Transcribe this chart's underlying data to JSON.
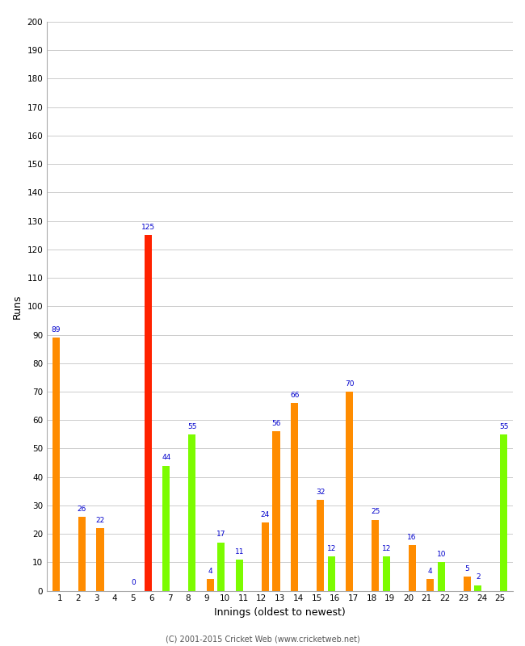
{
  "xlabel": "Innings (oldest to newest)",
  "ylabel": "Runs",
  "ylim": [
    0,
    200
  ],
  "yticks": [
    0,
    10,
    20,
    30,
    40,
    50,
    60,
    70,
    80,
    90,
    100,
    110,
    120,
    130,
    140,
    150,
    160,
    170,
    180,
    190,
    200
  ],
  "innings": [
    1,
    2,
    3,
    4,
    5,
    6,
    7,
    8,
    9,
    10,
    11,
    12,
    13,
    14,
    15,
    16,
    17,
    18,
    19,
    20,
    21,
    22,
    23,
    24,
    25
  ],
  "left_values": [
    89,
    0,
    0,
    0,
    0,
    125,
    44,
    0,
    0,
    17,
    11,
    0,
    56,
    66,
    0,
    12,
    70,
    0,
    12,
    0,
    0,
    10,
    0,
    2,
    0
  ],
  "right_values": [
    0,
    26,
    22,
    0,
    0,
    0,
    0,
    55,
    4,
    0,
    0,
    24,
    0,
    0,
    32,
    0,
    0,
    25,
    0,
    16,
    4,
    0,
    5,
    0,
    55
  ],
  "left_colors": [
    "#ff8c00",
    "#7cfc00",
    "#7cfc00",
    "#7cfc00",
    "#7cfc00",
    "#ff2200",
    "#7cfc00",
    "#ff8c00",
    "#7cfc00",
    "#7cfc00",
    "#7cfc00",
    "#7cfc00",
    "#ff8c00",
    "#ff8c00",
    "#7cfc00",
    "#7cfc00",
    "#ff8c00",
    "#7cfc00",
    "#7cfc00",
    "#7cfc00",
    "#7cfc00",
    "#7cfc00",
    "#7cfc00",
    "#7cfc00",
    "#ff8c00"
  ],
  "right_colors": [
    "#7cfc00",
    "#ff8c00",
    "#ff8c00",
    "#ff8c00",
    "#7cfc00",
    "#7cfc00",
    "#ff8c00",
    "#7cfc00",
    "#ff8c00",
    "#ff8c00",
    "#ff8c00",
    "#ff8c00",
    "#7cfc00",
    "#7cfc00",
    "#ff8c00",
    "#ff8c00",
    "#7cfc00",
    "#ff8c00",
    "#ff8c00",
    "#ff8c00",
    "#ff8c00",
    "#ff8c00",
    "#ff8c00",
    "#ff8c00",
    "#7cfc00"
  ],
  "zero_innings": [
    5
  ],
  "label_color": "#0000cc",
  "background_color": "#ffffff",
  "footer": "(C) 2001-2015 Cricket Web (www.cricketweb.net)",
  "bar_width": 0.4,
  "figsize": [
    6.5,
    8.0
  ],
  "dpi": 100
}
